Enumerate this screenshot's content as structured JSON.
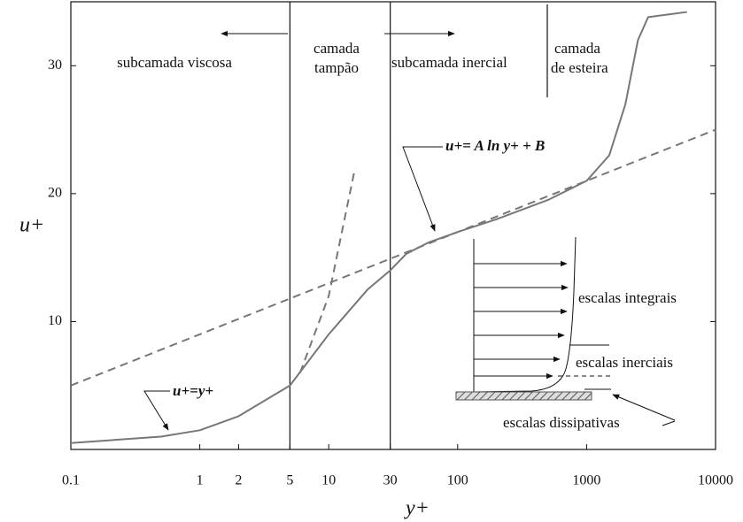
{
  "chart_data": {
    "type": "line",
    "xlabel": "y+",
    "ylabel": "u+",
    "xscale": "log",
    "xlim": [
      0.1,
      10000
    ],
    "ylim": [
      0,
      35
    ],
    "xticks": [
      0.1,
      1,
      2,
      5,
      10,
      30,
      100,
      1000,
      10000
    ],
    "yticks": [
      10,
      20,
      30
    ],
    "vlines": [
      5,
      30
    ],
    "series": [
      {
        "color": "#777777",
        "style": "solid",
        "x": [
          0.1,
          0.5,
          1,
          2,
          5,
          10,
          20,
          30,
          40,
          60,
          100,
          200,
          500,
          1000,
          1500,
          2000,
          2500,
          3000,
          6000
        ],
        "values": [
          0.5,
          1,
          1.5,
          2.6,
          5,
          9,
          12.5,
          14,
          15.3,
          16.2,
          17,
          18,
          19.5,
          21,
          23,
          27,
          32,
          33.8,
          34.2
        ]
      },
      {
        "color": "#777777",
        "style": "dashed",
        "x": [
          6,
          10,
          16
        ],
        "values": [
          6,
          12,
          22
        ]
      },
      {
        "color": "#777777",
        "style": "dashed",
        "x": [
          0.1,
          10000
        ],
        "values": [
          5,
          25
        ]
      }
    ],
    "annotations": [
      "subcamada viscosa",
      "camada",
      "tampão",
      "subcamada inercial",
      "camada",
      "de esteira",
      "u+=y+",
      "u+= A ln y+ + B",
      "escalas integrais",
      "escalas inerciais",
      "escalas dissipativas"
    ]
  }
}
